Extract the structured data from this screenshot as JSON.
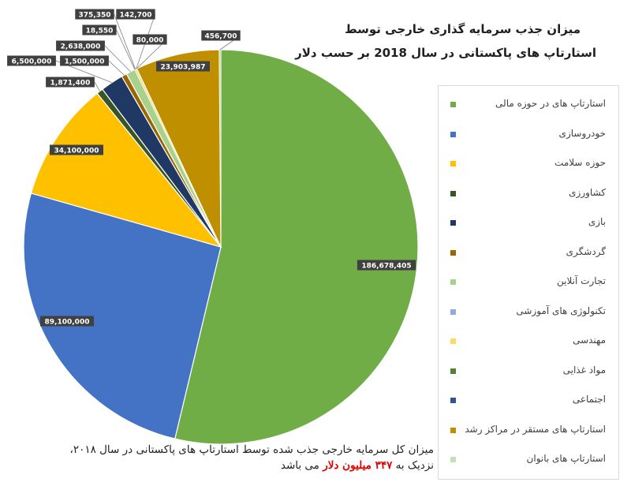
{
  "title": {
    "line1": "میزان جذب سرمایه گذاری خارجی توسط",
    "line2": "استارتاپ های پاکستانی در سال 2018 بر حسب دلار"
  },
  "caption": {
    "line1": "میزان کل سرمایه خارجی جذب شده توسط استارتاپ های پاکستانی در سال ۲۰۱۸،",
    "line2_prefix": "نزدیک به ",
    "line2_highlight": "۳۴۷ میلیون دلار",
    "line2_suffix": " می باشد"
  },
  "chart_data": {
    "type": "pie",
    "title": "میزان جذب سرمایه گذاری خارجی توسط استارتاپ های پاکستانی در سال 2018 بر حسب دلار",
    "legend_position": "right",
    "slices": [
      {
        "label": "استارتاپ های در حوزه مالی",
        "value": 186678405,
        "value_label": "186,678,405",
        "color": "#70ad47"
      },
      {
        "label": "خودروسازی",
        "value": 89100000,
        "value_label": "89,100,000",
        "color": "#4472c4"
      },
      {
        "label": "حوزه سلامت",
        "value": 34100000,
        "value_label": "34,100,000",
        "color": "#ffc000"
      },
      {
        "label": "کشاورزی",
        "value": 1871400,
        "value_label": "1,871,400",
        "color": "#375623"
      },
      {
        "label": "بازی",
        "value": 6500000,
        "value_label": "6,500,000",
        "color": "#203864"
      },
      {
        "label": "گردشگری",
        "value": 1500000,
        "value_label": "1,500,000",
        "color": "#9c6500"
      },
      {
        "label": "تجارت آنلاین",
        "value": 2638000,
        "value_label": "2,638,000",
        "color": "#a9d18e"
      },
      {
        "label": "تکنولوژی های آموزشی",
        "value": 18550,
        "value_label": "18,550",
        "color": "#8faadc"
      },
      {
        "label": "مهندسی",
        "value": 375350,
        "value_label": "375,350",
        "color": "#ffd966"
      },
      {
        "label": "مواد غذایی",
        "value": 142700,
        "value_label": "142,700",
        "color": "#548235"
      },
      {
        "label": "اجتماعی",
        "value": 80000,
        "value_label": "80,000",
        "color": "#2f5597"
      },
      {
        "label": "استارتاپ های مستقر در مراکز رشد",
        "value": 23903987,
        "value_label": "23,903,987",
        "color": "#bf8f00"
      },
      {
        "label": "استارتاپ های بانوان",
        "value": 456700,
        "value_label": "456,700",
        "color": "#c5e0b4"
      }
    ]
  }
}
